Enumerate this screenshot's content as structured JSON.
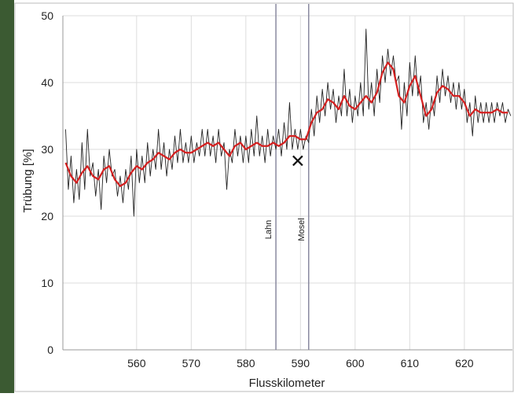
{
  "chart_data": {
    "type": "line",
    "xlabel": "Flusskilometer",
    "ylabel": "Trübung [%]",
    "xlim": [
      546.5,
      628.8
    ],
    "ylim": [
      0,
      50
    ],
    "xticks": [
      560,
      570,
      580,
      590,
      600,
      610,
      620
    ],
    "yticks": [
      0,
      10,
      20,
      30,
      40,
      50
    ],
    "grid": true,
    "series": [
      {
        "color": "#222222",
        "x": [
          547,
          547.5,
          548,
          548.5,
          549,
          549.5,
          550,
          550.5,
          551,
          551.5,
          552,
          552.5,
          553,
          553.5,
          554,
          554.5,
          555,
          555.5,
          556,
          556.5,
          557,
          557.5,
          558,
          558.5,
          559,
          559.5,
          560,
          560.5,
          561,
          561.5,
          562,
          562.5,
          563,
          563.5,
          564,
          564.5,
          565,
          565.5,
          566,
          566.5,
          567,
          567.5,
          568,
          568.5,
          569,
          569.5,
          570,
          570.5,
          571,
          571.5,
          572,
          572.5,
          573,
          573.5,
          574,
          574.5,
          575,
          575.5,
          576,
          576.5,
          577,
          577.5,
          578,
          578.5,
          579,
          579.5,
          580,
          580.5,
          581,
          581.5,
          582,
          582.5,
          583,
          583.5,
          584,
          584.5,
          585,
          585.5,
          586,
          586.5,
          587,
          587.5,
          588,
          588.5,
          589,
          589.5,
          590,
          590.5,
          591,
          591.5,
          592,
          592.5,
          593,
          593.5,
          594,
          594.5,
          595,
          595.5,
          596,
          596.5,
          597,
          597.5,
          598,
          598.5,
          599,
          599.5,
          600,
          600.5,
          601,
          601.5,
          602,
          602.5,
          603,
          603.5,
          604,
          604.5,
          605,
          605.5,
          606,
          606.5,
          607,
          607.5,
          608,
          608.5,
          609,
          609.5,
          610,
          610.5,
          611,
          611.5,
          612,
          612.5,
          613,
          613.5,
          614,
          614.5,
          615,
          615.5,
          616,
          616.5,
          617,
          617.5,
          618,
          618.5,
          619,
          619.5,
          620,
          620.5,
          621,
          621.5,
          622,
          622.5,
          623,
          623.5,
          624,
          624.5,
          625,
          625.5,
          626,
          626.5,
          627,
          627.5,
          628,
          628.5
        ],
        "values": [
          33,
          24,
          29,
          22,
          27,
          22.5,
          31,
          24,
          33,
          26,
          28,
          23,
          27,
          21,
          29,
          25,
          30,
          26,
          27,
          23,
          26,
          22,
          27,
          24,
          29,
          20,
          30,
          25,
          29,
          25,
          31,
          26,
          30,
          27,
          33,
          27,
          31,
          26,
          30,
          27,
          32,
          28,
          33,
          28,
          31,
          28,
          32,
          28,
          31,
          29,
          33,
          29,
          33,
          29,
          32,
          28,
          33,
          29,
          31,
          24,
          30,
          28,
          33,
          29,
          32,
          28,
          32,
          28,
          33,
          29,
          35,
          29,
          32,
          28,
          33,
          29,
          32,
          30,
          33,
          29,
          34,
          30,
          37,
          30,
          33,
          30,
          33,
          30,
          32,
          31,
          36,
          32,
          38,
          34,
          39,
          35,
          40,
          36,
          39,
          34,
          38,
          35,
          42,
          35,
          39,
          34,
          38,
          35,
          40,
          35,
          48,
          36,
          40,
          35,
          42,
          37,
          44,
          40,
          45,
          41,
          44,
          40,
          41,
          33,
          40,
          35,
          43,
          38,
          44,
          38,
          41,
          34,
          37,
          33,
          38,
          35,
          41,
          37,
          42,
          38,
          41,
          37,
          40,
          36,
          40,
          36,
          39,
          34,
          37,
          32,
          38,
          34,
          37,
          34,
          37,
          34,
          37,
          34,
          37,
          35,
          37,
          34,
          36,
          35
        ]
      },
      {
        "color": "#d42020",
        "x": [
          547,
          548,
          549,
          550,
          551,
          552,
          553,
          554,
          555,
          556,
          557,
          558,
          559,
          560,
          561,
          562,
          563,
          564,
          565,
          566,
          567,
          568,
          569,
          570,
          571,
          572,
          573,
          574,
          575,
          576,
          577,
          578,
          579,
          580,
          581,
          582,
          583,
          584,
          585,
          586,
          587,
          588,
          589,
          590,
          591,
          592,
          593,
          594,
          595,
          596,
          597,
          598,
          599,
          600,
          601,
          602,
          603,
          604,
          605,
          606,
          607,
          608,
          609,
          610,
          611,
          612,
          613,
          614,
          615,
          616,
          617,
          618,
          619,
          620,
          621,
          622,
          623,
          624,
          625,
          626,
          627,
          628
        ],
        "values": [
          28,
          26,
          25,
          26.5,
          27.5,
          26,
          25.5,
          27,
          27.5,
          25.5,
          24.5,
          25,
          26.5,
          27.5,
          27,
          28,
          28.5,
          29.5,
          29,
          28.5,
          29.5,
          30,
          29.5,
          29.5,
          30,
          30.5,
          31,
          30.5,
          31,
          30,
          29,
          30.5,
          31,
          30,
          30.5,
          31,
          30.5,
          30.5,
          31,
          30.5,
          31,
          32,
          32,
          31.5,
          31.5,
          34,
          35.5,
          36,
          37.5,
          37,
          36,
          38,
          36.5,
          36,
          37,
          38,
          37,
          38.5,
          41.5,
          43,
          42,
          38,
          37,
          39.5,
          41,
          38,
          35,
          36,
          38.5,
          39.5,
          39,
          38,
          38,
          37,
          35,
          36,
          35.5,
          35.5,
          35.5,
          36,
          35.5,
          35.5
        ]
      }
    ],
    "vlines": [
      {
        "x": 585.5,
        "label": "Lahn"
      },
      {
        "x": 591.5,
        "label": "Mosel"
      }
    ],
    "marker": {
      "x": 589.5,
      "y": 28.3
    }
  }
}
